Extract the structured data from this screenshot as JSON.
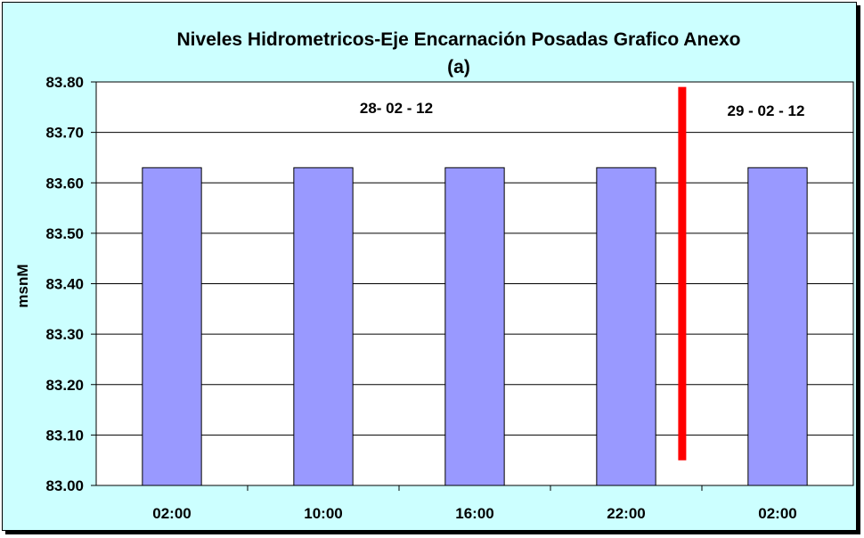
{
  "chart_data": {
    "type": "bar",
    "title": "Niveles Hidrometricos-Eje Encarnación Posadas Grafico Anexo",
    "subtitle": "(a)",
    "xlabel": "",
    "ylabel": "msnM",
    "categories": [
      "02:00",
      "10:00",
      "16:00",
      "22:00",
      "02:00"
    ],
    "values": [
      83.63,
      83.63,
      83.63,
      83.63,
      83.63
    ],
    "ylim": [
      83.0,
      83.8
    ],
    "yticks": [
      "83.00",
      "83.10",
      "83.20",
      "83.30",
      "83.40",
      "83.50",
      "83.60",
      "83.70",
      "83.80"
    ],
    "grid": true,
    "bar_color": "#9999ff",
    "plot_background": "#ffffff",
    "chart_background": "#ccffff",
    "annotations": [
      {
        "text": "28- 02 - 12"
      },
      {
        "text": "29 - 02 - 12"
      }
    ],
    "divider": {
      "color": "#ff0000",
      "y_from": 83.05,
      "y_to": 83.79
    }
  }
}
